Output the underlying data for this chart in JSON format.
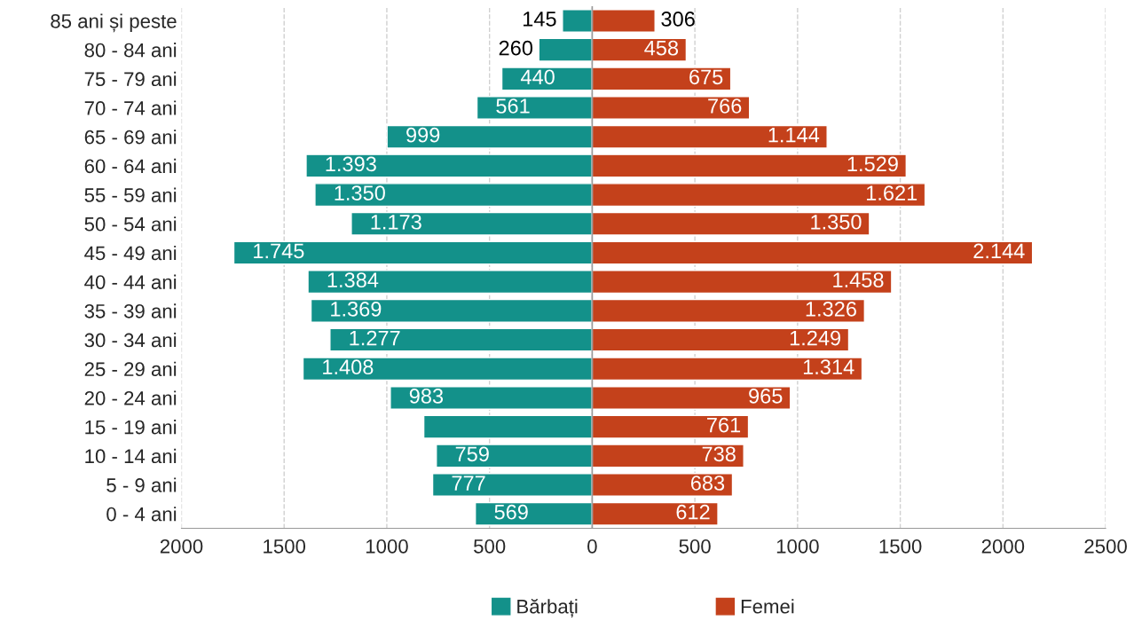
{
  "chart_data": {
    "type": "bar",
    "orientation": "horizontal",
    "categories": [
      "85 ani și peste",
      "80 - 84 ani",
      "75 - 79 ani",
      "70 - 74 ani",
      "65 - 69 ani",
      "60 - 64 ani",
      "55 - 59 ani",
      "50 - 54 ani",
      "45 - 49 ani",
      "40 - 44 ani",
      "35 - 39 ani",
      "30 - 34 ani",
      "25 - 29 ani",
      "20 - 24 ani",
      "15 - 19 ani",
      "10 - 14 ani",
      "5 - 9 ani",
      "0 - 4 ani"
    ],
    "series": [
      {
        "name": "Bărbați",
        "color": "#13918a",
        "values": [
          145,
          260,
          440,
          561,
          999,
          1393,
          1350,
          1173,
          1745,
          1384,
          1369,
          1277,
          1408,
          983,
          820,
          759,
          777,
          569
        ],
        "base": [
          -145,
          -260,
          -440,
          -561,
          -999,
          -1393,
          -1350,
          -1173,
          -1745,
          -1384,
          -1369,
          -1277,
          -1408,
          -983,
          -820,
          -759,
          -777,
          -569
        ],
        "value_labels": [
          "145",
          "260",
          "440",
          "561",
          "999",
          "1.393",
          "1.350",
          "1.173",
          "1.745",
          "1.384",
          "1.369",
          "1.277",
          "1.408",
          "983",
          null,
          "759",
          "777",
          "569"
        ]
      },
      {
        "name": "Femei",
        "color": "#c4411b",
        "values": [
          306,
          458,
          675,
          766,
          1144,
          1529,
          1621,
          1350,
          2144,
          1458,
          1326,
          1249,
          1314,
          965,
          761,
          738,
          683,
          612
        ],
        "value_labels": [
          "306",
          "458",
          "675",
          "766",
          "1.144",
          "1.529",
          "1.621",
          "1.350",
          "2.144",
          "1.458",
          "1.326",
          "1.249",
          "1.314",
          "965",
          "761",
          "738",
          "683",
          "612"
        ]
      }
    ],
    "xlim": [
      -2000,
      2500
    ],
    "xticks": [
      {
        "value": -2000,
        "label": "2000"
      },
      {
        "value": -1500,
        "label": "1500"
      },
      {
        "value": -1000,
        "label": "1000"
      },
      {
        "value": -500,
        "label": "500"
      },
      0,
      500,
      1000,
      1500,
      2000,
      2500
    ],
    "ref_lines": [
      {
        "axis": "x",
        "value": 0,
        "color": "#999999"
      }
    ],
    "grid": "x",
    "legend": "bottom"
  }
}
